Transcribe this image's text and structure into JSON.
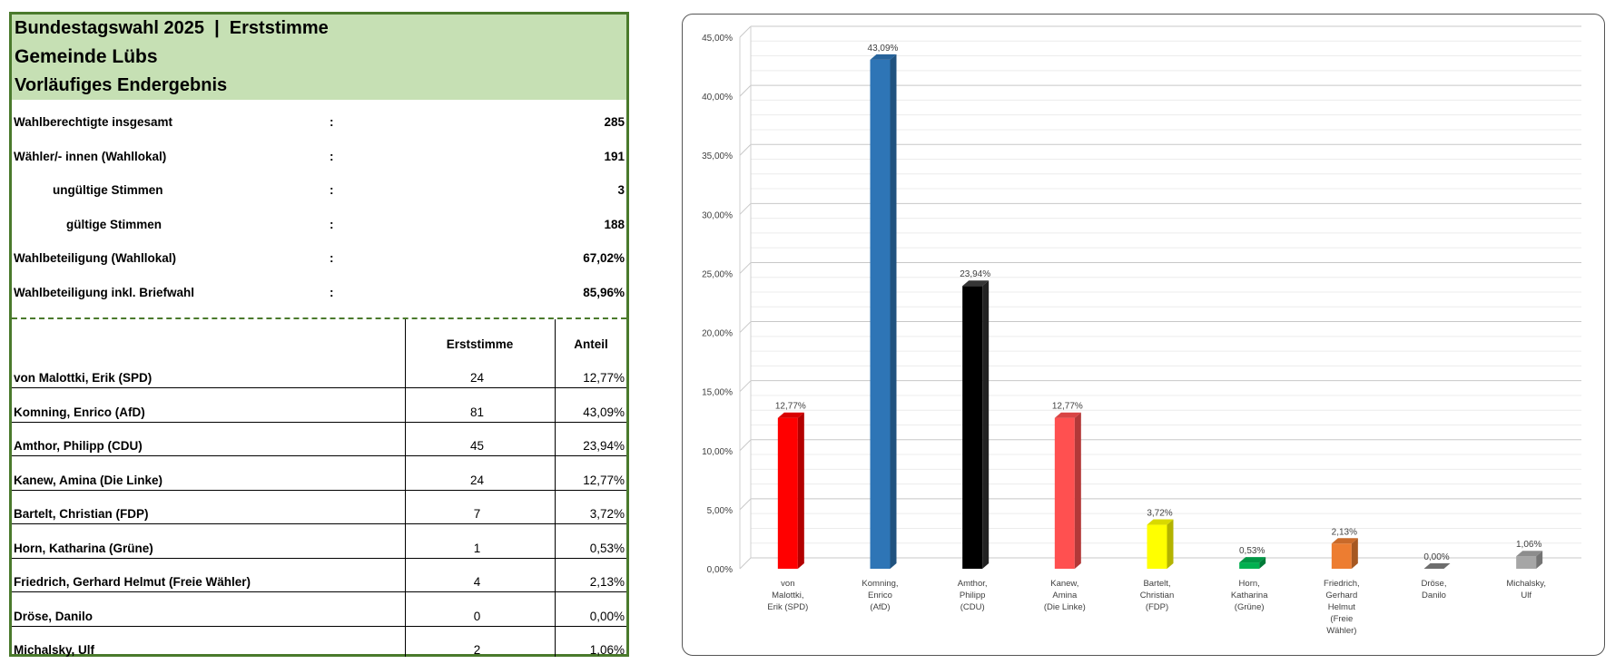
{
  "table": {
    "title_line1": "Bundestagswahl 2025  |  Erststimme",
    "title_line2": "Gemeinde Lübs",
    "title_line3": "Vorläufiges Endergebnis",
    "summary": [
      {
        "label": "Wahlberechtigte insgesamt",
        "colon": ":",
        "value": "285",
        "indent": 0
      },
      {
        "label": "Wähler/- innen (Wahllokal)",
        "colon": ":",
        "value": "191",
        "indent": 0
      },
      {
        "label": "ungültige Stimmen",
        "colon": ":",
        "value": "3",
        "indent": 1
      },
      {
        "label": "gültige Stimmen",
        "colon": ":",
        "value": "188",
        "indent": 2
      },
      {
        "label": "Wahlbeteiligung (Wahllokal)",
        "colon": ":",
        "value": "67,02%",
        "indent": 0
      },
      {
        "label": "Wahlbeteiligung inkl. Briefwahl",
        "colon": ":",
        "value": "85,96%",
        "indent": 0
      }
    ],
    "col_votes": "Erststimme",
    "col_share": "Anteil",
    "candidates": [
      {
        "name": "von Malottki, Erik (SPD)",
        "votes": "24",
        "share": "12,77%"
      },
      {
        "name": "Komning, Enrico (AfD)",
        "votes": "81",
        "share": "43,09%"
      },
      {
        "name": "Amthor, Philipp (CDU)",
        "votes": "45",
        "share": "23,94%"
      },
      {
        "name": "Kanew, Amina (Die Linke)",
        "votes": "24",
        "share": "12,77%"
      },
      {
        "name": "Bartelt, Christian (FDP)",
        "votes": "7",
        "share": "3,72%"
      },
      {
        "name": "Horn, Katharina (Grüne)",
        "votes": "1",
        "share": "0,53%"
      },
      {
        "name": "Friedrich, Gerhard Helmut (Freie Wähler)",
        "votes": "4",
        "share": "2,13%"
      },
      {
        "name": "Dröse, Danilo",
        "votes": "0",
        "share": "0,00%"
      },
      {
        "name": "Michalsky, Ulf",
        "votes": "2",
        "share": "1,06%"
      }
    ]
  },
  "chart_data": {
    "type": "bar",
    "categories": [
      [
        "von",
        "Malottki,",
        "Erik (SPD)"
      ],
      [
        "Komning,",
        "Enrico",
        "(AfD)"
      ],
      [
        "Amthor,",
        "Philipp",
        "(CDU)"
      ],
      [
        "Kanew,",
        "Amina",
        "(Die Linke)"
      ],
      [
        "Bartelt,",
        "Christian",
        "(FDP)"
      ],
      [
        "Horn,",
        "Katharina",
        "(Grüne)"
      ],
      [
        "Friedrich,",
        "Gerhard",
        "Helmut",
        "(Freie",
        "Wähler)"
      ],
      [
        "Dröse,",
        "Danilo"
      ],
      [
        "Michalsky,",
        "Ulf"
      ]
    ],
    "values": [
      12.77,
      43.09,
      23.94,
      12.77,
      3.72,
      0.53,
      2.13,
      0.0,
      1.06
    ],
    "value_labels": [
      "12,77%",
      "43,09%",
      "23,94%",
      "12,77%",
      "3,72%",
      "0,53%",
      "2,13%",
      "0,00%",
      "1,06%"
    ],
    "colors": [
      "#ff0000",
      "#2e75b6",
      "#000000",
      "#ff5050",
      "#ffff00",
      "#00b050",
      "#ed7d31",
      "#808080",
      "#a6a6a6"
    ],
    "y_ticks": [
      "0,00%",
      "5,00%",
      "10,00%",
      "15,00%",
      "20,00%",
      "25,00%",
      "30,00%",
      "35,00%",
      "40,00%",
      "45,00%"
    ],
    "ylim": [
      0,
      45
    ],
    "grid": true,
    "three_d": true
  }
}
